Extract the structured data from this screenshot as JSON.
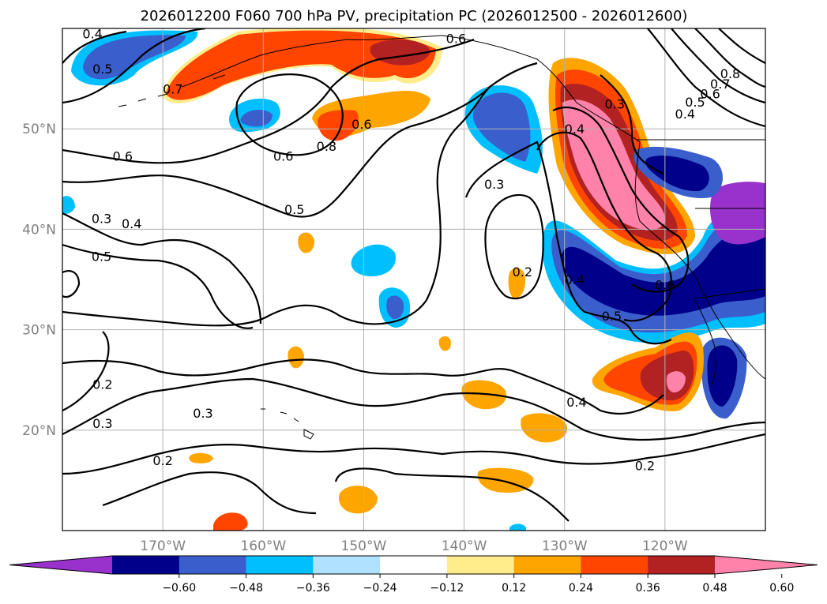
{
  "chart_data": {
    "type": "heatmap",
    "title": "2026012200 F060 700 hPa PV, precipitation PC (2026012500 - 2026012600)",
    "map": {
      "lon_range": [
        -180,
        -110
      ],
      "lat_range": [
        10,
        60
      ],
      "grid": true,
      "lon_ticks": [
        {
          "value": -170,
          "label": "170°W"
        },
        {
          "value": -160,
          "label": "160°W"
        },
        {
          "value": -150,
          "label": "150°W"
        },
        {
          "value": -140,
          "label": "140°W"
        },
        {
          "value": -130,
          "label": "130°W"
        },
        {
          "value": -120,
          "label": "120°W"
        }
      ],
      "lat_ticks": [
        {
          "value": 50,
          "label": "50°N"
        },
        {
          "value": 40,
          "label": "40°N"
        },
        {
          "value": 30,
          "label": "30°N"
        },
        {
          "value": 20,
          "label": "20°N"
        }
      ]
    },
    "colorbar": {
      "boundaries": [
        -0.72,
        -0.6,
        -0.48,
        -0.36,
        -0.24,
        -0.12,
        0.12,
        0.24,
        0.36,
        0.48,
        0.6,
        0.72
      ],
      "colors": [
        "#9932cc",
        "#00008b",
        "#3a5fcd",
        "#00bfff",
        "#b0e2ff",
        "#ffffff",
        "#ffec8b",
        "#ffa500",
        "#ff4500",
        "#b22222",
        "#ff82ab"
      ],
      "tick_labels": [
        "−0.60",
        "−0.48",
        "−0.36",
        "−0.24",
        "−0.12",
        "0.12",
        "0.24",
        "0.36",
        "0.48",
        "0.60"
      ],
      "extend": "both"
    },
    "pv_contour_labels": [
      {
        "text": "0.4",
        "lon": -177.0,
        "lat": 59.5
      },
      {
        "text": "0.5",
        "lon": -176.0,
        "lat": 56.0
      },
      {
        "text": "0.7",
        "lon": -169.0,
        "lat": 54.0
      },
      {
        "text": "0.6",
        "lon": -140.8,
        "lat": 59.0
      },
      {
        "text": "0.6",
        "lon": -150.2,
        "lat": 50.5
      },
      {
        "text": "0.8",
        "lon": -153.7,
        "lat": 48.3
      },
      {
        "text": "0.6",
        "lon": -174.0,
        "lat": 47.3
      },
      {
        "text": "0.6",
        "lon": -158.0,
        "lat": 47.3
      },
      {
        "text": "0.5",
        "lon": -156.9,
        "lat": 42.0
      },
      {
        "text": "0.3",
        "lon": -176.1,
        "lat": 41.1
      },
      {
        "text": "0.4",
        "lon": -173.1,
        "lat": 40.6
      },
      {
        "text": "0.5",
        "lon": -176.1,
        "lat": 37.3
      },
      {
        "text": "0.3",
        "lon": -137.0,
        "lat": 44.5
      },
      {
        "text": "0.2",
        "lon": -134.2,
        "lat": 35.8
      },
      {
        "text": "0.3",
        "lon": -125.0,
        "lat": 52.5
      },
      {
        "text": "0.4",
        "lon": -129.0,
        "lat": 50.0
      },
      {
        "text": "0.4",
        "lon": -129.0,
        "lat": 35.0
      },
      {
        "text": "0.5",
        "lon": -125.3,
        "lat": 31.4
      },
      {
        "text": "0.6",
        "lon": -120.0,
        "lat": 34.5
      },
      {
        "text": "0.8",
        "lon": -113.5,
        "lat": 55.5
      },
      {
        "text": "0.7",
        "lon": -114.5,
        "lat": 54.5
      },
      {
        "text": "0.6",
        "lon": -115.5,
        "lat": 53.5
      },
      {
        "text": "0.5",
        "lon": -117.0,
        "lat": 52.7
      },
      {
        "text": "0.4",
        "lon": -118.0,
        "lat": 51.5
      },
      {
        "text": "0.2",
        "lon": -176.0,
        "lat": 24.6
      },
      {
        "text": "0.3",
        "lon": -176.0,
        "lat": 20.7
      },
      {
        "text": "0.3",
        "lon": -166.0,
        "lat": 21.7
      },
      {
        "text": "0.2",
        "lon": -170.0,
        "lat": 17.0
      },
      {
        "text": "0.4",
        "lon": -128.8,
        "lat": 22.8
      },
      {
        "text": "0.2",
        "lon": -122.0,
        "lat": 16.5
      }
    ]
  }
}
